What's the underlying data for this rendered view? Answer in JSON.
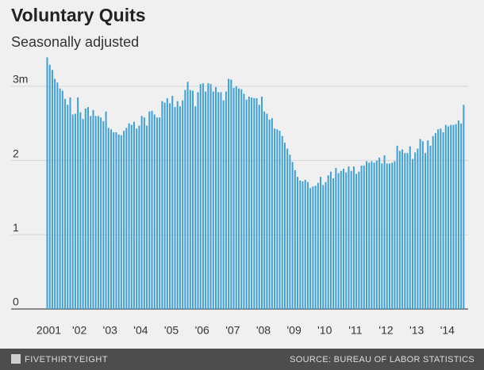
{
  "chart_data": {
    "type": "bar",
    "title": "Voluntary Quits",
    "subtitle": "Seasonally adjusted",
    "brand": "FIVETHIRTYEIGHT",
    "source": "SOURCE: BUREAU OF LABOR STATISTICS",
    "color": "#3ea0d4",
    "grid": true,
    "ylim": [
      0,
      3.4
    ],
    "yticks": [
      0,
      1,
      2,
      {
        "value": 3,
        "label": "3m"
      }
    ],
    "categories": [
      "2001",
      null,
      null,
      null,
      null,
      null,
      null,
      null,
      null,
      null,
      null,
      null,
      "'02",
      null,
      null,
      null,
      null,
      null,
      null,
      null,
      null,
      null,
      null,
      null,
      "'03",
      null,
      null,
      null,
      null,
      null,
      null,
      null,
      null,
      null,
      null,
      null,
      "'04",
      null,
      null,
      null,
      null,
      null,
      null,
      null,
      null,
      null,
      null,
      null,
      "'05",
      null,
      null,
      null,
      null,
      null,
      null,
      null,
      null,
      null,
      null,
      null,
      "'06",
      null,
      null,
      null,
      null,
      null,
      null,
      null,
      null,
      null,
      null,
      null,
      "'07",
      null,
      null,
      null,
      null,
      null,
      null,
      null,
      null,
      null,
      null,
      null,
      "'08",
      null,
      null,
      null,
      null,
      null,
      null,
      null,
      null,
      null,
      null,
      null,
      "'09",
      null,
      null,
      null,
      null,
      null,
      null,
      null,
      null,
      null,
      null,
      null,
      "'10",
      null,
      null,
      null,
      null,
      null,
      null,
      null,
      null,
      null,
      null,
      null,
      "'11",
      null,
      null,
      null,
      null,
      null,
      null,
      null,
      null,
      null,
      null,
      null,
      "'12",
      null,
      null,
      null,
      null,
      null,
      null,
      null,
      null,
      null,
      null,
      null,
      "'13",
      null,
      null,
      null,
      null,
      null,
      null,
      null,
      null,
      null,
      null,
      null,
      "'14",
      null,
      null,
      null,
      null,
      null,
      null,
      null
    ],
    "values": [
      3.39,
      3.29,
      3.22,
      3.1,
      3.05,
      2.97,
      2.94,
      2.83,
      2.75,
      2.85,
      2.62,
      2.63,
      2.85,
      2.65,
      2.56,
      2.7,
      2.72,
      2.6,
      2.68,
      2.6,
      2.6,
      2.58,
      2.53,
      2.66,
      2.44,
      2.42,
      2.38,
      2.38,
      2.35,
      2.34,
      2.4,
      2.44,
      2.5,
      2.48,
      2.52,
      2.43,
      2.47,
      2.6,
      2.58,
      2.47,
      2.66,
      2.67,
      2.62,
      2.58,
      2.58,
      2.8,
      2.78,
      2.84,
      2.77,
      2.87,
      2.72,
      2.8,
      2.73,
      2.81,
      2.95,
      3.06,
      2.95,
      2.94,
      2.73,
      2.92,
      3.03,
      3.04,
      2.93,
      3.04,
      3.03,
      2.93,
      2.99,
      2.92,
      2.92,
      2.81,
      2.93,
      3.1,
      3.09,
      2.98,
      3.0,
      2.97,
      2.96,
      2.9,
      2.82,
      2.86,
      2.85,
      2.84,
      2.84,
      2.75,
      2.86,
      2.66,
      2.63,
      2.55,
      2.57,
      2.43,
      2.42,
      2.4,
      2.33,
      2.24,
      2.16,
      2.08,
      1.98,
      1.87,
      1.78,
      1.73,
      1.72,
      1.74,
      1.71,
      1.63,
      1.65,
      1.66,
      1.7,
      1.78,
      1.67,
      1.71,
      1.8,
      1.85,
      1.76,
      1.9,
      1.83,
      1.86,
      1.89,
      1.84,
      1.92,
      1.86,
      1.92,
      1.82,
      1.85,
      1.93,
      1.93,
      1.99,
      1.97,
      1.99,
      1.97,
      2.0,
      2.04,
      1.96,
      2.07,
      1.96,
      1.96,
      1.97,
      1.99,
      2.2,
      2.13,
      2.15,
      2.1,
      2.1,
      2.19,
      2.02,
      2.11,
      2.16,
      2.29,
      2.26,
      2.1,
      2.27,
      2.2,
      2.33,
      2.37,
      2.42,
      2.43,
      2.38,
      2.48,
      2.46,
      2.48,
      2.48,
      2.49,
      2.54,
      2.5,
      2.75
    ]
  }
}
